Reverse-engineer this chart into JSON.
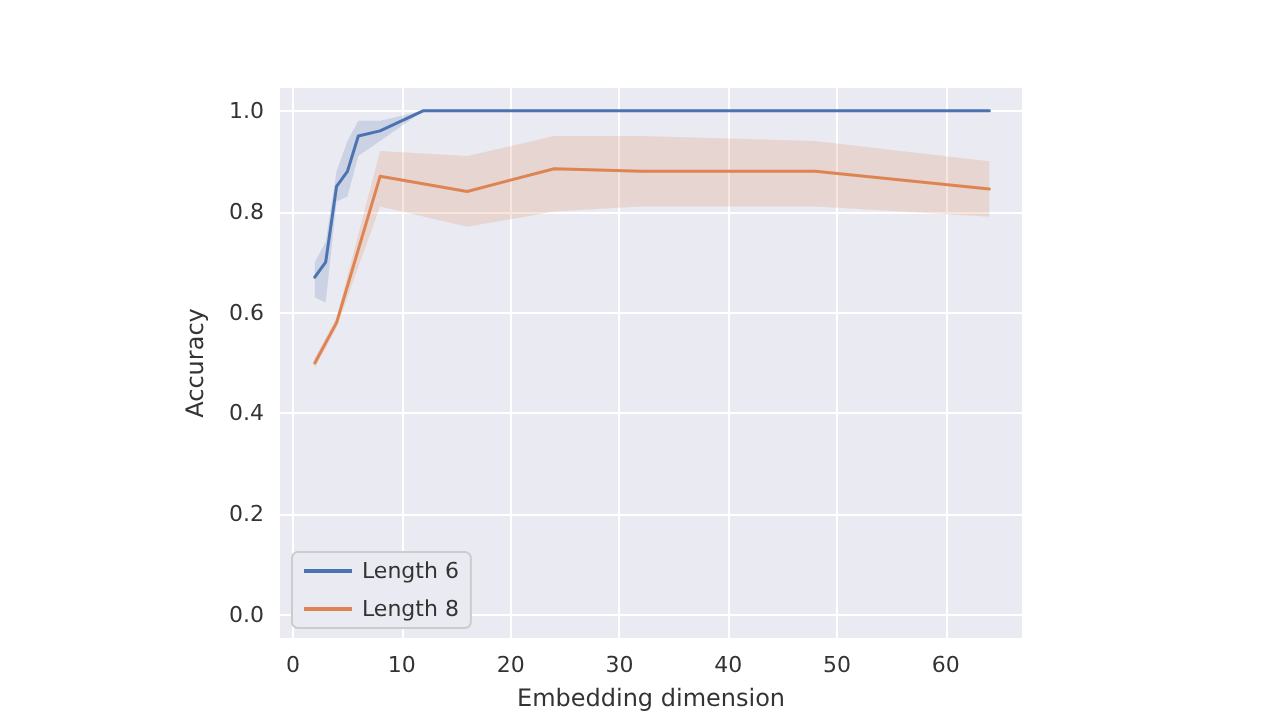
{
  "chart_data": {
    "type": "line",
    "xlabel": "Embedding dimension",
    "ylabel": "Accuracy",
    "xlim": [
      -1.2,
      67
    ],
    "ylim": [
      -0.045,
      1.045
    ],
    "xticks": [
      0,
      10,
      20,
      30,
      40,
      50,
      60
    ],
    "yticks": [
      {
        "value": 0,
        "label": "0.0"
      },
      0.2,
      0.4,
      0.6,
      0.8,
      {
        "value": 1,
        "label": "1.0"
      }
    ],
    "grid": true,
    "legend": "bottom left",
    "marker": "none",
    "line_style": "solid",
    "series": [
      {
        "name": "Length 6",
        "color": "#4c72b0",
        "x": [
          2,
          3,
          4,
          5,
          6,
          8,
          12,
          16,
          24,
          32,
          48,
          64
        ],
        "values": [
          0.67,
          0.7,
          0.85,
          0.88,
          0.95,
          0.96,
          1.0,
          1.0,
          1.0,
          1.0,
          1.0,
          1.0
        ],
        "lower": [
          0.63,
          0.62,
          0.82,
          0.83,
          0.91,
          0.94,
          1.0,
          1.0,
          1.0,
          1.0,
          1.0,
          1.0
        ],
        "upper": [
          0.7,
          0.74,
          0.88,
          0.94,
          0.98,
          0.98,
          1.0,
          1.0,
          1.0,
          1.0,
          1.0,
          1.0
        ]
      },
      {
        "name": "Length 8",
        "color": "#dd8452",
        "x": [
          2,
          4,
          8,
          16,
          24,
          32,
          48,
          64
        ],
        "values": [
          0.5,
          0.58,
          0.87,
          0.84,
          0.885,
          0.88,
          0.88,
          0.845
        ],
        "lower": [
          0.49,
          0.57,
          0.81,
          0.77,
          0.8,
          0.81,
          0.81,
          0.79
        ],
        "upper": [
          0.51,
          0.59,
          0.92,
          0.91,
          0.95,
          0.95,
          0.94,
          0.9
        ]
      }
    ]
  }
}
